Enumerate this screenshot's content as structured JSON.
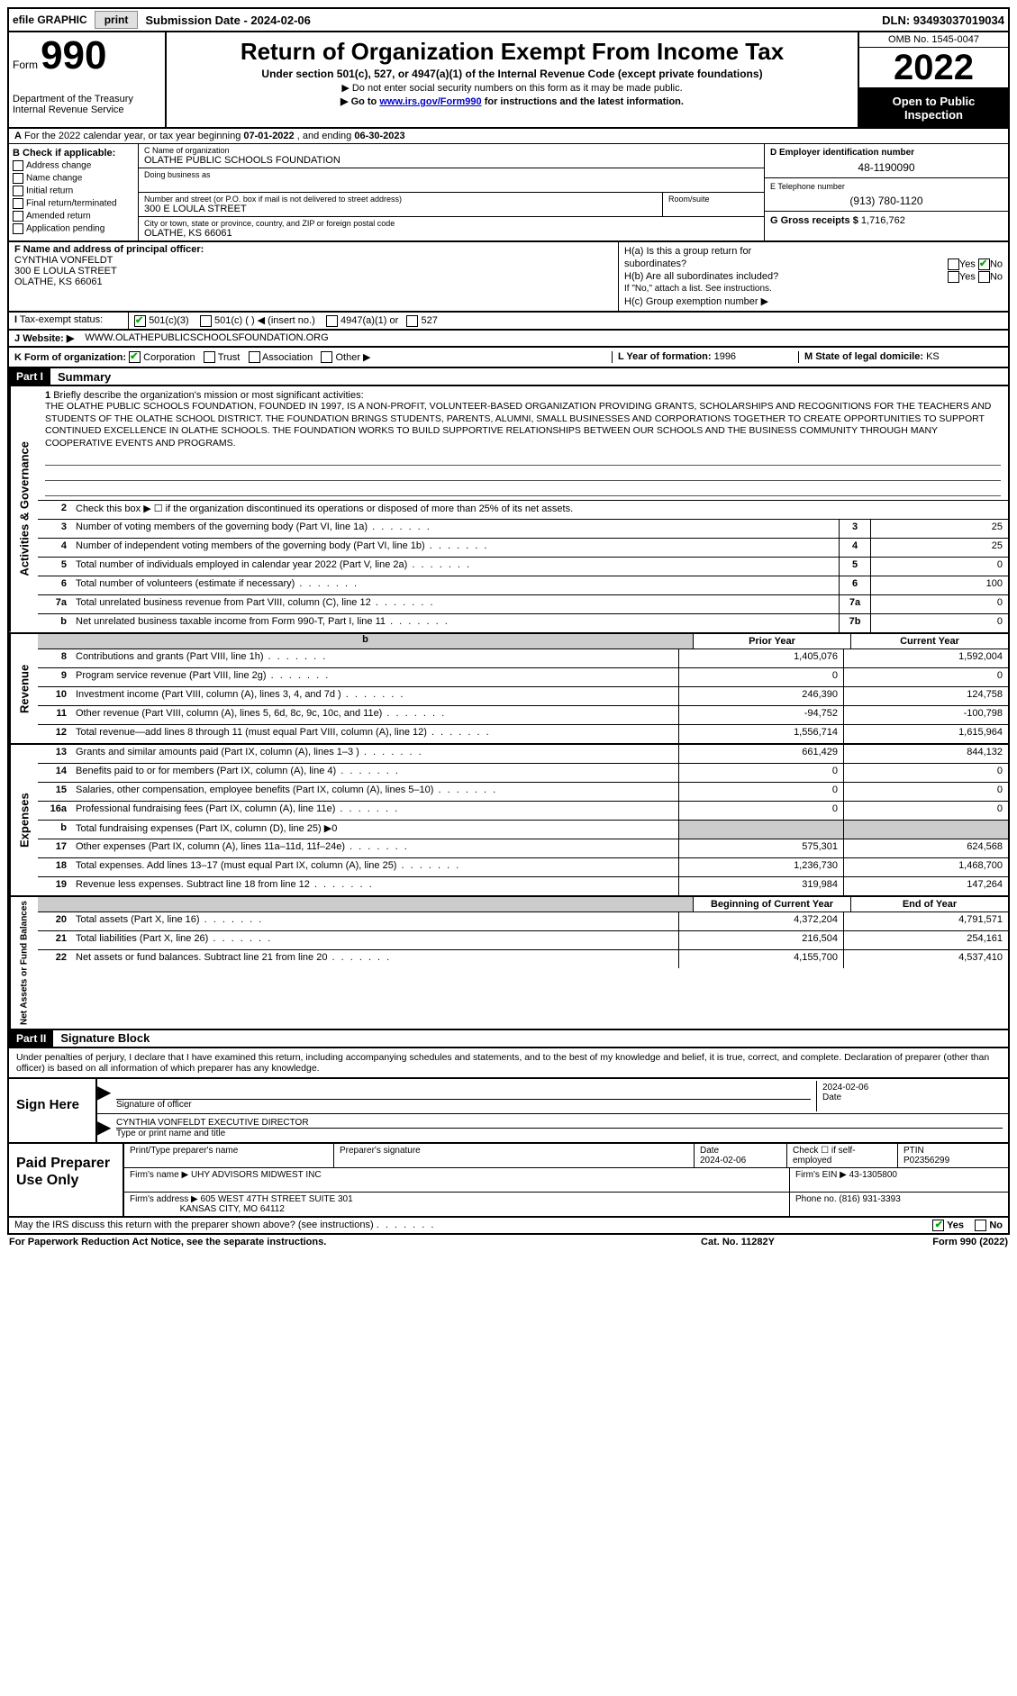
{
  "topbar": {
    "efile": "efile GRAPHIC",
    "print": "print",
    "submission": "Submission Date - 2024-02-06",
    "dln": "DLN: 93493037019034"
  },
  "header": {
    "form_prefix": "Form",
    "form_number": "990",
    "dept": "Department of the Treasury",
    "irs": "Internal Revenue Service",
    "title": "Return of Organization Exempt From Income Tax",
    "subtitle": "Under section 501(c), 527, or 4947(a)(1) of the Internal Revenue Code (except private foundations)",
    "nosocial": "▶ Do not enter social security numbers on this form as it may be made public.",
    "goto_prefix": "▶ Go to ",
    "goto_link": "www.irs.gov/Form990",
    "goto_suffix": " for instructions and the latest information.",
    "omb": "OMB No. 1545-0047",
    "year": "2022",
    "open_public": "Open to Public Inspection"
  },
  "period": {
    "a_label": "A",
    "text_a": " For the 2022 calendar year, or tax year beginning ",
    "begin": "07-01-2022",
    "text_b": " , and ending ",
    "end": "06-30-2023"
  },
  "section_b": {
    "label": "B Check if applicable:",
    "items": [
      "Address change",
      "Name change",
      "Initial return",
      "Final return/terminated",
      "Amended return",
      "Application pending"
    ]
  },
  "org": {
    "c_label": "C Name of organization",
    "name": "OLATHE PUBLIC SCHOOLS FOUNDATION",
    "dba_label": "Doing business as",
    "dba": "",
    "addr_label": "Number and street (or P.O. box if mail is not delivered to street address)",
    "addr": "300 E LOULA STREET",
    "room_label": "Room/suite",
    "city_label": "City or town, state or province, country, and ZIP or foreign postal code",
    "city": "OLATHE, KS  66061"
  },
  "right_col": {
    "d_label": "D Employer identification number",
    "ein": "48-1190090",
    "e_label": "E Telephone number",
    "phone": "(913) 780-1120",
    "g_label": "G Gross receipts $",
    "gross": "1,716,762"
  },
  "officer": {
    "f_label": "F  Name and address of principal officer:",
    "name": "CYNTHIA VONFELDT",
    "addr1": "300 E LOULA STREET",
    "addr2": "OLATHE, KS  66061"
  },
  "h_section": {
    "ha": "H(a)  Is this a group return for",
    "ha2": "subordinates?",
    "hb": "H(b)  Are all subordinates included?",
    "hb_note": "If \"No,\" attach a list. See instructions.",
    "hc": "H(c)  Group exemption number ▶",
    "yes": "Yes",
    "no": "No"
  },
  "tax_status": {
    "i_label": "I",
    "label": "Tax-exempt status:",
    "opt1": "501(c)(3)",
    "opt2": "501(c) (  ) ◀ (insert no.)",
    "opt3": "4947(a)(1) or",
    "opt4": "527"
  },
  "website": {
    "j_label": "J",
    "label": "Website: ▶",
    "url": "WWW.OLATHEPUBLICSCHOOLSFOUNDATION.ORG"
  },
  "k_row": {
    "k_label": "K Form of organization:",
    "opts": [
      "Corporation",
      "Trust",
      "Association",
      "Other ▶"
    ],
    "l_label": "L Year of formation:",
    "l_val": "1996",
    "m_label": "M State of legal domicile:",
    "m_val": "KS"
  },
  "part1": {
    "label": "Part I",
    "title": "Summary"
  },
  "mission": {
    "line1_label": "1",
    "line1_prefix": "Briefly describe the organization's mission or most significant activities:",
    "text": "THE OLATHE PUBLIC SCHOOLS FOUNDATION, FOUNDED IN 1997, IS A NON-PROFIT, VOLUNTEER-BASED ORGANIZATION PROVIDING GRANTS, SCHOLARSHIPS AND RECOGNITIONS FOR THE TEACHERS AND STUDENTS OF THE OLATHE SCHOOL DISTRICT. THE FOUNDATION BRINGS STUDENTS, PARENTS, ALUMNI, SMALL BUSINESSES AND CORPORATIONS TOGETHER TO CREATE OPPORTUNITIES TO SUPPORT CONTINUED EXCELLENCE IN OLATHE SCHOOLS. THE FOUNDATION WORKS TO BUILD SUPPORTIVE RELATIONSHIPS BETWEEN OUR SCHOOLS AND THE BUSINESS COMMUNITY THROUGH MANY COOPERATIVE EVENTS AND PROGRAMS."
  },
  "governance": {
    "line2": "Check this box ▶ ☐ if the organization discontinued its operations or disposed of more than 25% of its net assets.",
    "rows": [
      {
        "n": "3",
        "desc": "Number of voting members of the governing body (Part VI, line 1a)",
        "box": "3",
        "val": "25"
      },
      {
        "n": "4",
        "desc": "Number of independent voting members of the governing body (Part VI, line 1b)",
        "box": "4",
        "val": "25"
      },
      {
        "n": "5",
        "desc": "Total number of individuals employed in calendar year 2022 (Part V, line 2a)",
        "box": "5",
        "val": "0"
      },
      {
        "n": "6",
        "desc": "Total number of volunteers (estimate if necessary)",
        "box": "6",
        "val": "100"
      },
      {
        "n": "7a",
        "desc": "Total unrelated business revenue from Part VIII, column (C), line 12",
        "box": "7a",
        "val": "0"
      },
      {
        "n": "b",
        "desc": "Net unrelated business taxable income from Form 990-T, Part I, line 11",
        "box": "7b",
        "val": "0"
      }
    ]
  },
  "revenue": {
    "side": "Revenue",
    "header_prior": "Prior Year",
    "header_curr": "Current Year",
    "rows": [
      {
        "n": "8",
        "desc": "Contributions and grants (Part VIII, line 1h)",
        "prior": "1,405,076",
        "curr": "1,592,004"
      },
      {
        "n": "9",
        "desc": "Program service revenue (Part VIII, line 2g)",
        "prior": "0",
        "curr": "0"
      },
      {
        "n": "10",
        "desc": "Investment income (Part VIII, column (A), lines 3, 4, and 7d )",
        "prior": "246,390",
        "curr": "124,758"
      },
      {
        "n": "11",
        "desc": "Other revenue (Part VIII, column (A), lines 5, 6d, 8c, 9c, 10c, and 11e)",
        "prior": "-94,752",
        "curr": "-100,798"
      },
      {
        "n": "12",
        "desc": "Total revenue—add lines 8 through 11 (must equal Part VIII, column (A), line 12)",
        "prior": "1,556,714",
        "curr": "1,615,964"
      }
    ]
  },
  "expenses": {
    "side": "Expenses",
    "rows": [
      {
        "n": "13",
        "desc": "Grants and similar amounts paid (Part IX, column (A), lines 1–3 )",
        "prior": "661,429",
        "curr": "844,132"
      },
      {
        "n": "14",
        "desc": "Benefits paid to or for members (Part IX, column (A), line 4)",
        "prior": "0",
        "curr": "0"
      },
      {
        "n": "15",
        "desc": "Salaries, other compensation, employee benefits (Part IX, column (A), lines 5–10)",
        "prior": "0",
        "curr": "0"
      },
      {
        "n": "16a",
        "desc": "Professional fundraising fees (Part IX, column (A), line 11e)",
        "prior": "0",
        "curr": "0"
      },
      {
        "n": "b",
        "desc": "Total fundraising expenses (Part IX, column (D), line 25) ▶0",
        "prior": "",
        "curr": "",
        "shaded": true
      },
      {
        "n": "17",
        "desc": "Other expenses (Part IX, column (A), lines 11a–11d, 11f–24e)",
        "prior": "575,301",
        "curr": "624,568"
      },
      {
        "n": "18",
        "desc": "Total expenses. Add lines 13–17 (must equal Part IX, column (A), line 25)",
        "prior": "1,236,730",
        "curr": "1,468,700"
      },
      {
        "n": "19",
        "desc": "Revenue less expenses. Subtract line 18 from line 12",
        "prior": "319,984",
        "curr": "147,264"
      }
    ]
  },
  "netassets": {
    "side": "Net Assets or Fund Balances",
    "header_begin": "Beginning of Current Year",
    "header_end": "End of Year",
    "rows": [
      {
        "n": "20",
        "desc": "Total assets (Part X, line 16)",
        "prior": "4,372,204",
        "curr": "4,791,571"
      },
      {
        "n": "21",
        "desc": "Total liabilities (Part X, line 26)",
        "prior": "216,504",
        "curr": "254,161"
      },
      {
        "n": "22",
        "desc": "Net assets or fund balances. Subtract line 21 from line 20",
        "prior": "4,155,700",
        "curr": "4,537,410"
      }
    ]
  },
  "part2": {
    "label": "Part II",
    "title": "Signature Block"
  },
  "declaration": "Under penalties of perjury, I declare that I have examined this return, including accompanying schedules and statements, and to the best of my knowledge and belief, it is true, correct, and complete. Declaration of preparer (other than officer) is based on all information of which preparer has any knowledge.",
  "sign": {
    "label": "Sign Here",
    "sig_label": "Signature of officer",
    "date_label": "Date",
    "date_val": "2024-02-06",
    "name": "CYNTHIA VONFELDT  EXECUTIVE DIRECTOR",
    "name_label": "Type or print name and title"
  },
  "preparer": {
    "label": "Paid Preparer Use Only",
    "col_print": "Print/Type preparer's name",
    "col_sig": "Preparer's signature",
    "col_date": "Date",
    "date_val": "2024-02-06",
    "col_check": "Check ☐ if self-employed",
    "col_ptin": "PTIN",
    "ptin": "P02356299",
    "firm_label": "Firm's name    ▶",
    "firm_name": "UHY ADVISORS MIDWEST INC",
    "firm_ein_label": "Firm's EIN ▶",
    "firm_ein": "43-1305800",
    "firm_addr_label": "Firm's address ▶",
    "firm_addr1": "605 WEST 47TH STREET SUITE 301",
    "firm_addr2": "KANSAS CITY, MO  64112",
    "phone_label": "Phone no.",
    "phone": "(816) 931-3393"
  },
  "discuss": {
    "text": "May the IRS discuss this return with the preparer shown above? (see instructions)",
    "yes": "Yes",
    "no": "No"
  },
  "footer": {
    "left": "For Paperwork Reduction Act Notice, see the separate instructions.",
    "mid": "Cat. No. 11282Y",
    "right": "Form 990 (2022)"
  }
}
